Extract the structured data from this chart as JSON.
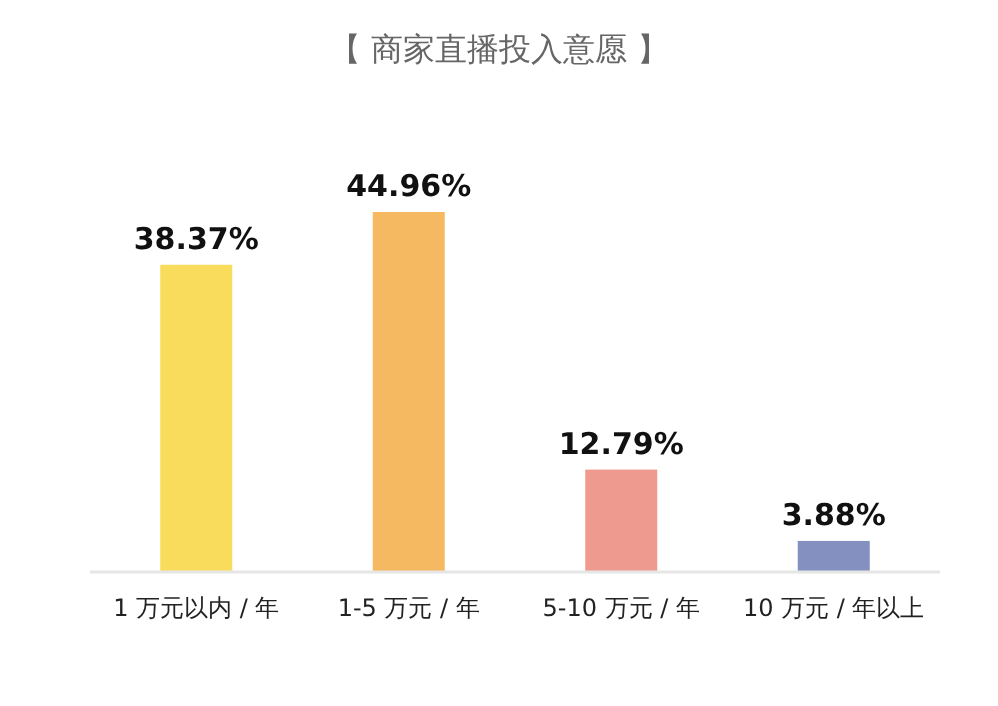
{
  "chart_data": {
    "type": "bar",
    "title": "【 商家直播投入意愿 】",
    "categories": [
      "1 万元以内 / 年",
      "1-5 万元 / 年",
      "5-10 万元 / 年",
      "10 万元 / 年以上"
    ],
    "values": [
      38.37,
      44.96,
      12.79,
      3.88
    ],
    "colors": [
      "#f9dc5c",
      "#f5b961",
      "#ef9a8e",
      "#8490c0"
    ],
    "value_labels": [
      "38.37%",
      "44.96%",
      "12.79%",
      "3.88%"
    ]
  }
}
